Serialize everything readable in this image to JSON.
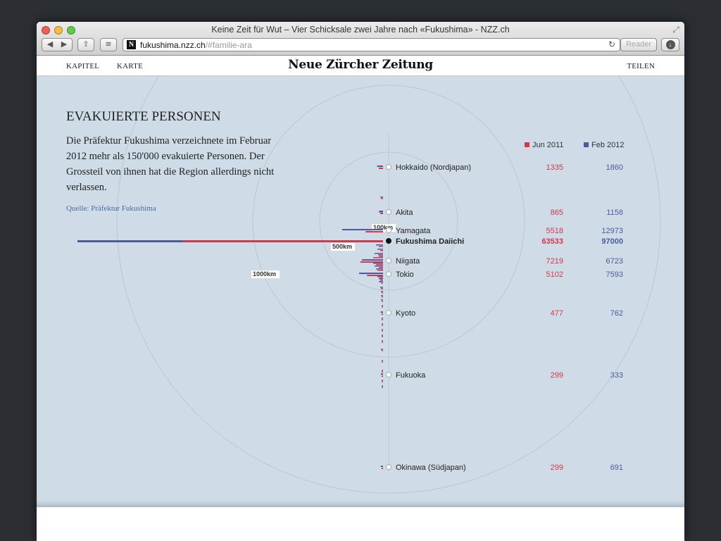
{
  "window": {
    "title": "Keine Zeit für Wut – Vier Schicksale zwei Jahre nach «Fukushima» - NZZ.ch",
    "url_domain": "fukushima.nzz.ch",
    "url_path": "/#familie-ara",
    "reader_label": "Reader",
    "favicon_letter": "N",
    "icons": {
      "back": "back-arrow-icon",
      "forward": "forward-arrow-icon",
      "share": "share-icon",
      "layers": "layers-icon",
      "reload": "reload-icon",
      "download": "download-icon",
      "fullscreen": "fullscreen-icon"
    }
  },
  "site": {
    "nav_kapitel": "KAPITEL",
    "nav_karte": "KARTE",
    "logo": "Neue Zürcher Zeitung",
    "nav_teilen": "TEILEN"
  },
  "article": {
    "heading": "EVAKUIERTE PERSONEN",
    "description": "Die Präfektur Fukushima verzeichnete im Februar 2012 mehr als 150'000 evakuierte Personen. Der Grossteil von ihnen hat die Region allerdings nicht verlassen.",
    "source": "Quelle: Präfektur Fukushima"
  },
  "colors": {
    "jun": "#d6354a",
    "feb": "#4a5a9c",
    "ring": "#b9c7d5"
  },
  "chart_data": {
    "type": "bar",
    "legend": {
      "position": "top-right",
      "entries": [
        {
          "name": "Jun 2011",
          "color": "#d6354a"
        },
        {
          "name": "Feb 2012",
          "color": "#4a5a9c"
        }
      ]
    },
    "distance_rings": [
      {
        "label": "100km"
      },
      {
        "label": "500km"
      },
      {
        "label": "1000km"
      }
    ],
    "labeled_rows": [
      {
        "name": "Hokkaido (Nordjapan)",
        "jun": 1335,
        "feb": 1860,
        "highlight": false
      },
      {
        "name": "Akita",
        "jun": 865,
        "feb": 1158,
        "highlight": false
      },
      {
        "name": "Yamagata",
        "jun": 5518,
        "feb": 12973,
        "highlight": false
      },
      {
        "name": "Fukushima Daiichi",
        "jun": 63533,
        "feb": 97000,
        "highlight": true
      },
      {
        "name": "Niigata",
        "jun": 7219,
        "feb": 6723,
        "highlight": false
      },
      {
        "name": "Tokio",
        "jun": 5102,
        "feb": 7593,
        "highlight": false
      },
      {
        "name": "Kyoto",
        "jun": 477,
        "feb": 762,
        "highlight": false
      },
      {
        "name": "Fukuoka",
        "jun": 299,
        "feb": 333,
        "highlight": false
      },
      {
        "name": "Okinawa (Südjapan)",
        "jun": 299,
        "feb": 691,
        "highlight": false
      }
    ]
  }
}
